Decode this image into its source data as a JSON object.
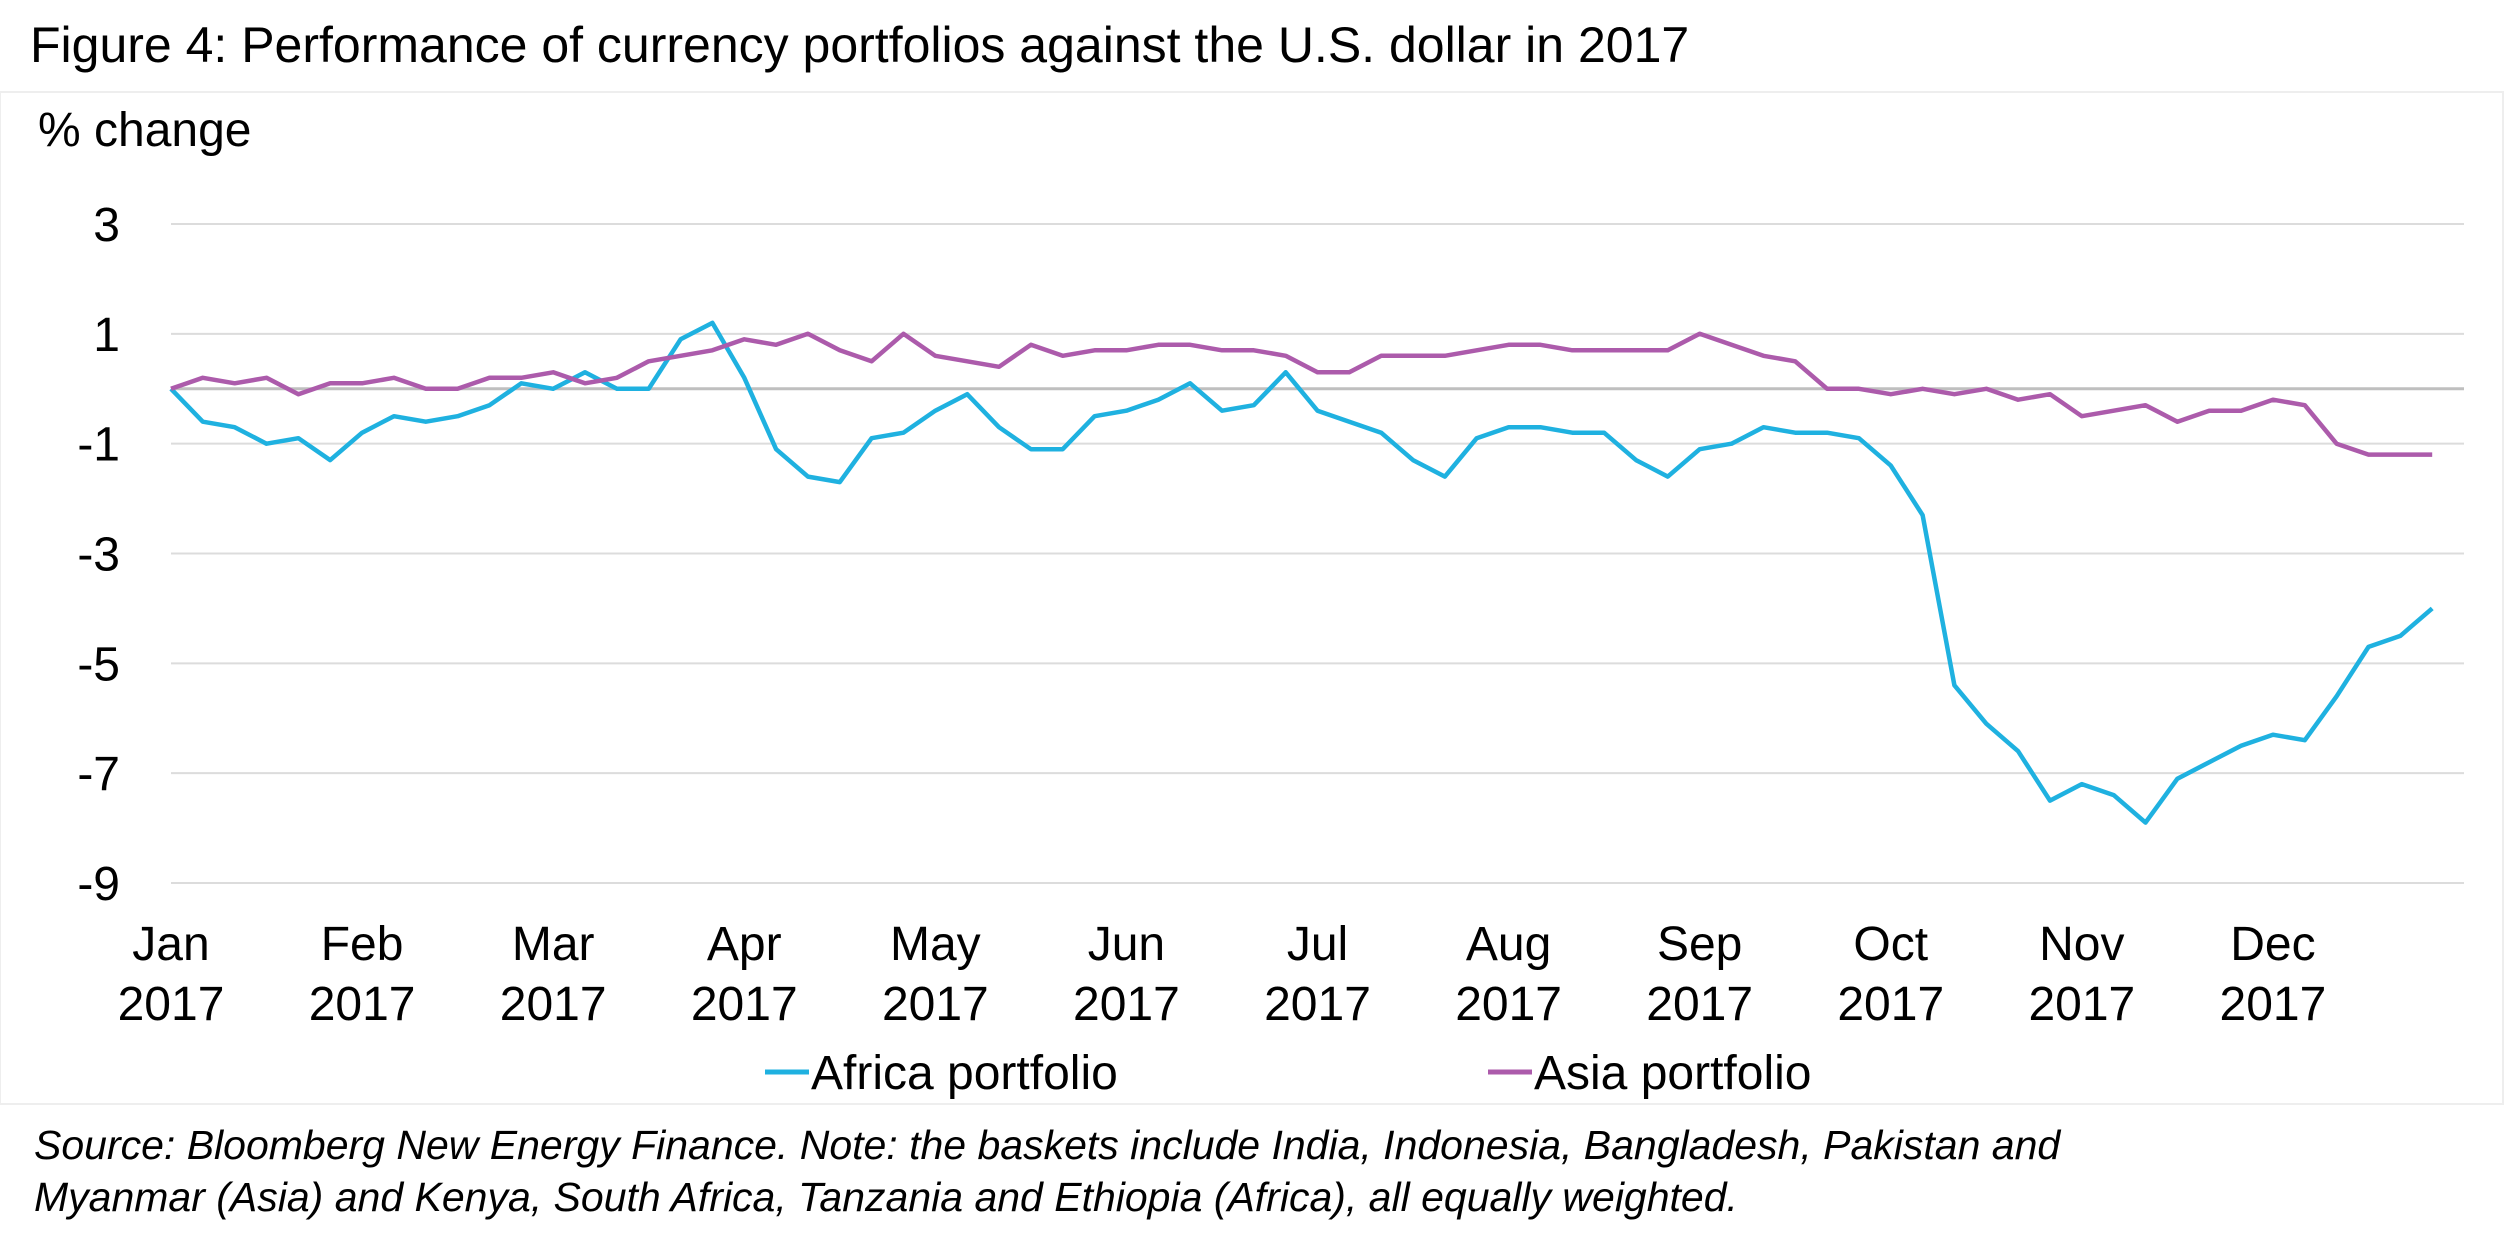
{
  "chart_data": {
    "type": "line",
    "title": "Figure 4: Performance of currency portfolios against the U.S. dollar in 2017",
    "y_label": "% change",
    "categories": [
      "Jan 2017",
      null,
      null,
      null,
      null,
      null,
      "Feb 2017",
      null,
      null,
      null,
      null,
      null,
      "Mar 2017",
      null,
      null,
      null,
      null,
      null,
      "Apr 2017",
      null,
      null,
      null,
      null,
      null,
      "May 2017",
      null,
      null,
      null,
      null,
      null,
      "Jun 2017",
      null,
      null,
      null,
      null,
      null,
      "Jul 2017",
      null,
      null,
      null,
      null,
      null,
      "Aug 2017",
      null,
      null,
      null,
      null,
      null,
      "Sep 2017",
      null,
      null,
      null,
      null,
      null,
      "Oct 2017",
      null,
      null,
      null,
      null,
      null,
      "Nov 2017",
      null,
      null,
      null,
      null,
      null,
      "Dec 2017",
      null,
      null,
      null,
      null,
      null
    ],
    "series": [
      {
        "name": "Africa portfolio",
        "color": "#1fb1e0",
        "values": [
          0,
          -0.6,
          -0.7,
          -1.0,
          -0.9,
          -1.3,
          -0.8,
          -0.5,
          -0.6,
          -0.5,
          -0.3,
          0.1,
          0.0,
          0.3,
          0.0,
          0.0,
          0.9,
          1.2,
          0.2,
          -1.1,
          -1.6,
          -1.7,
          -0.9,
          -0.8,
          -0.4,
          -0.1,
          -0.7,
          -1.1,
          -1.1,
          -0.5,
          -0.4,
          -0.2,
          0.1,
          -0.4,
          -0.3,
          0.3,
          -0.4,
          -0.6,
          -0.8,
          -1.3,
          -1.6,
          -0.9,
          -0.7,
          -0.7,
          -0.8,
          -0.8,
          -1.3,
          -1.6,
          -1.1,
          -1.0,
          -0.7,
          -0.8,
          -0.8,
          -0.9,
          -1.4,
          -2.3,
          -5.4,
          -6.1,
          -6.6,
          -7.5,
          -7.2,
          -7.4,
          -7.9,
          -7.1,
          -6.8,
          -6.5,
          -6.3,
          -6.4,
          -5.6,
          -4.7,
          -4.5,
          -4.0
        ]
      },
      {
        "name": "Asia portfolio",
        "color": "#ac5bab",
        "values": [
          0,
          0.2,
          0.1,
          0.2,
          -0.1,
          0.1,
          0.1,
          0.2,
          0.0,
          0.0,
          0.2,
          0.2,
          0.3,
          0.1,
          0.2,
          0.5,
          0.6,
          0.7,
          0.9,
          0.8,
          1.0,
          0.7,
          0.5,
          1.0,
          0.6,
          0.5,
          0.4,
          0.8,
          0.6,
          0.7,
          0.7,
          0.8,
          0.8,
          0.7,
          0.7,
          0.6,
          0.3,
          0.3,
          0.6,
          0.6,
          0.6,
          0.7,
          0.8,
          0.8,
          0.7,
          0.7,
          0.7,
          0.7,
          1.0,
          0.8,
          0.6,
          0.5,
          0.0,
          0.0,
          -0.1,
          0.0,
          -0.1,
          0.0,
          -0.2,
          -0.1,
          -0.5,
          -0.4,
          -0.3,
          -0.6,
          -0.4,
          -0.4,
          -0.2,
          -0.3,
          -1.0,
          -1.2,
          -1.2,
          -1.2
        ]
      }
    ],
    "ylim": [
      -9,
      3
    ],
    "yticks": [
      3,
      1,
      -1,
      -3,
      -5,
      -7,
      -9
    ],
    "grid": true,
    "legend": "bottom",
    "notes": [
      "Source: Bloomberg New Energy Finance. Note: the baskets include India, Indonesia, Bangladesh, Pakistan and",
      "Myanmar (Asia) and Kenya, South Africa, Tanzania and Ethiopia (Africa), all equally weighted."
    ]
  }
}
